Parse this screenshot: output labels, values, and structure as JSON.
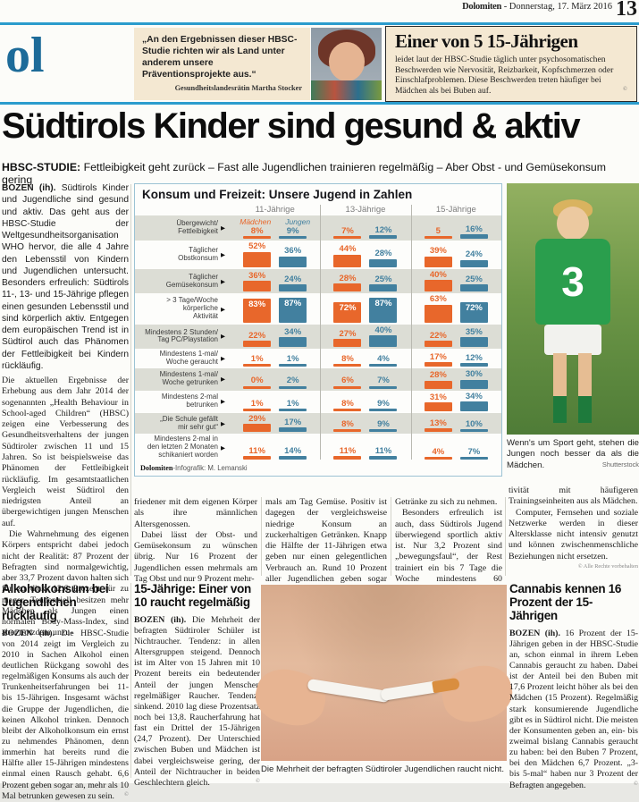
{
  "masthead": {
    "paper": "Dolomiten",
    "dateline": "- Donnerstag, 17. März 2016",
    "page_number": "13",
    "section_fragment": "ol"
  },
  "quote_box": {
    "text": "„An den Ergebnissen dieser HBSC-Studie richten wir als Land unter anderem unsere Präventionsprojekte aus.“",
    "attribution": "Gesundheitslandesrätin Martha Stocker"
  },
  "stat_box": {
    "title": "Einer von 5 15-Jährigen",
    "body": "leidet laut der HBSC-Studie täglich unter psychosomatischen Beschwerden wie Nervosität, Reizbarkeit, Kopfschmerzen oder Einschlafproblemen. Diese Beschwerden treten häufiger bei Mädchen als bei Buben auf.",
    "copyright": "©"
  },
  "headline": "Südtirols Kinder sind gesund & aktiv",
  "subhead": {
    "kicker": "HBSC-STUDIE:",
    "text": "Fettleibigkeit geht zurück – Fast alle Jugendlichen trainieren regelmäßig – Aber Obst - und Gemüsekonsum gering"
  },
  "lead_article": {
    "dateline": "BOZEN (ih).",
    "p1": "Südtirols Kinder und Jugendliche sind gesund und aktiv. Das geht aus der HBSC-Studie der Weltgesundheitsorganisation WHO hervor, die alle 4 Jahre den Lebensstil von Kindern und Jugendlichen untersucht. Besonders erfreulich: Südtirols 11-, 13- und 15-Jährige pflegen einen gesunden Lebensstil und sind körperlich aktiv. Entgegen dem europäischen Trend ist in Südtirol auch das Phänomen der Fettleibigkeit bei Kindern rückläufig.",
    "p2": "Die aktuellen Ergebnisse der Erhebung aus dem Jahr 2014 der sogenannten „Health Behaviour in School-aged Children“ (HBSC) zeigen eine Verbesserung des Gesundheitsverhaltens der jungen Südtiroler zwischen 11 und 15 Jahren. So ist beispielsweise das Phänomen der Fettleibigkeit rückläufig. Im gesamtstaatlichen Vergleich weist Südtirol den niedrigsten Anteil an übergewichtigen jungen Menschen auf.",
    "p3": "Die Wahrnehmung des eigenen Körpers entspricht dabei jedoch nicht der Realität: 87 Prozent der Befragten sind normalgewichtig, aber 33,7 Prozent davon halten sich für zu dick, 12,6 Prozent für zu mager. Tendenziell besitzen mehr Mädchen als Jungen einen normalen Body-Mass-Index, sind aber trotzdem unzu-",
    "col2_p1": "friedener mit dem eigenen Körper als ihre männlichen Altersgenossen.",
    "col2_p2": "Dabei lässt der Obst- und Gemüsekonsum zu wünschen übrig. Nur 16 Prozent der Jugendlichen essen mehrmals am Tag Obst und nur 9 Prozent mehr-",
    "col3_p1": "mals am Tag Gemüse. Positiv ist dagegen der vergleichsweise niedrige Konsum an zuckerhaltigen Getränken. Knapp die Hälfte der 11-Jährigen etwa geben nur einen gelegentlichen Verbrauch an. Rund 10 Prozent aller Jugendlichen geben sogar an, nie solche",
    "col4_p1": "Getränke zu sich zu nehmen.",
    "col4_p2": "Besonders erfreulich ist auch, dass Südtirols Jugend überwiegend sportlich aktiv ist. Nur 3,2 Prozent sind „bewegungsfaul“, der Rest trainiert ein bis 7 Tage die Woche mindestens 60 Minuten. Jungen üben körperliche Ak-",
    "col5_p1": "tivität mit häufigeren Trainingseinheiten aus als Mädchen.",
    "col5_p2": "Computer, Fernsehen und soziale Netzwerke werden in dieser Altersklasse nicht intensiv genutzt und können zwischenmenschliche Beziehungen nicht ersetzen.",
    "rights": "© Alle Rechte vorbehalten"
  },
  "chart_data": {
    "type": "bar",
    "title": "Konsum und Freizeit: Unsere Jugend in Zahlen",
    "credit_brand": "Dolomiten",
    "credit_rest": "-Infografik: M. Lemanski",
    "groups": [
      "11-Jährige",
      "13-Jährige",
      "15-Jährige"
    ],
    "legend": [
      {
        "label": "Mädchen",
        "color": "#e8672b"
      },
      {
        "label": "Jungen",
        "color": "#42809f"
      }
    ],
    "rows": [
      {
        "label": "Übergewicht/\nFettleibigkeit",
        "display": [
          [
            "8%",
            "9%"
          ],
          [
            "7%",
            "12%"
          ],
          [
            "5",
            "16%"
          ]
        ],
        "values": [
          [
            8,
            9
          ],
          [
            7,
            12
          ],
          [
            5,
            16
          ]
        ]
      },
      {
        "label": "Täglicher\nObstkonsum",
        "display": [
          [
            "52%",
            "36%"
          ],
          [
            "44%",
            "28%"
          ],
          [
            "39%",
            "24%"
          ]
        ],
        "values": [
          [
            52,
            36
          ],
          [
            44,
            28
          ],
          [
            39,
            24
          ]
        ]
      },
      {
        "label": "Täglicher\nGemüsekonsum",
        "display": [
          [
            "36%",
            "24%"
          ],
          [
            "28%",
            "25%"
          ],
          [
            "40%",
            "25%"
          ]
        ],
        "values": [
          [
            36,
            24
          ],
          [
            28,
            25
          ],
          [
            40,
            25
          ]
        ]
      },
      {
        "label": "> 3 Tage/Woche\nkörperliche\nAktivität",
        "display": [
          [
            "83%",
            "87%"
          ],
          [
            "72%",
            "87%"
          ],
          [
            "63%",
            "72%"
          ]
        ],
        "values": [
          [
            83,
            87
          ],
          [
            72,
            87
          ],
          [
            63,
            72
          ]
        ]
      },
      {
        "label": "Mindestens 2 Stunden/\nTag PC/Playstation",
        "display": [
          [
            "22%",
            "34%"
          ],
          [
            "27%",
            "40%"
          ],
          [
            "22%",
            "35%"
          ]
        ],
        "values": [
          [
            22,
            34
          ],
          [
            27,
            40
          ],
          [
            22,
            35
          ]
        ]
      },
      {
        "label": "Mindestens 1-mal/\nWoche geraucht",
        "display": [
          [
            "1%",
            "1%"
          ],
          [
            "8%",
            "4%"
          ],
          [
            "17%",
            "12%"
          ]
        ],
        "values": [
          [
            1,
            1
          ],
          [
            8,
            4
          ],
          [
            17,
            12
          ]
        ]
      },
      {
        "label": "Mindestens 1-mal/\nWoche getrunken",
        "display": [
          [
            "0%",
            "2%"
          ],
          [
            "6%",
            "7%"
          ],
          [
            "28%",
            "30%"
          ]
        ],
        "values": [
          [
            0,
            2
          ],
          [
            6,
            7
          ],
          [
            28,
            30
          ]
        ]
      },
      {
        "label": "Mindestens 2-mal\nbetrunken",
        "display": [
          [
            "1%",
            "1%"
          ],
          [
            "8%",
            "9%"
          ],
          [
            "31%",
            "34%"
          ]
        ],
        "values": [
          [
            1,
            1
          ],
          [
            8,
            9
          ],
          [
            31,
            34
          ]
        ]
      },
      {
        "label": "„Die Schule gefällt\nmir sehr gut“",
        "display": [
          [
            "29%",
            "17%"
          ],
          [
            "8%",
            "9%"
          ],
          [
            "13%",
            "10%"
          ]
        ],
        "values": [
          [
            29,
            17
          ],
          [
            8,
            9
          ],
          [
            13,
            10
          ]
        ]
      },
      {
        "label": "Mindestens 2-mal in\nden letzten 2 Monaten\nschikaniert worden",
        "display": [
          [
            "11%",
            "14%"
          ],
          [
            "11%",
            "11%"
          ],
          [
            "4%",
            "7%"
          ]
        ],
        "values": [
          [
            11,
            14
          ],
          [
            11,
            11
          ],
          [
            4,
            7
          ]
        ]
      }
    ]
  },
  "sport_photo": {
    "jersey_number": "3",
    "caption": "Wenn's um Sport geht, stehen die Jungen noch besser da als die Mädchen.",
    "credit": "Shutterstock"
  },
  "smoking_photo": {
    "caption": "Die Mehrheit der befragten Südtiroler Jugendlichen raucht nicht."
  },
  "sections": {
    "alkohol": {
      "title": "Alkoholkonsum bei Jugendlichen rückläufig",
      "dateline": "BOZEN (ih).",
      "body": "Die HBSC-Studie von 2014 zeigt im Vergleich zu 2010 in Sachen Alkohol einen deutlichen Rückgang sowohl des regelmäßigen Konsums als auch der Trunkenheitserfahrungen bei 11- bis 15-Jährigen. Insgesamt wächst die Gruppe der Jugendlichen, die keinen Alkohol trinken. Dennoch bleibt der Alkoholkonsum ein ernst zu nehmendes Phänomen, denn immerhin hat bereits rund die Hälfte aller 15-Jährigen mindestens einmal einen Rausch gehabt. 6,6 Prozent geben sogar an, mehr als 10 Mal betrunken gewesen zu sein.",
      "copyright": "©"
    },
    "raucher": {
      "title": "15-Jährige: Einer von 10 raucht regelmäßig",
      "dateline": "BOZEN (ih).",
      "body": "Die Mehrheit der befragten Südtiroler Schüler ist Nichtraucher. Tendenz: in allen Altersgruppen steigend. Dennoch ist im Alter von 15 Jahren mit 10 Prozent bereits ein bedeutender Anteil der jungen Menschen regelmäßiger Raucher. Tendenz: sinkend. 2010 lag diese Prozentsatz noch bei 13,8. Raucherfahrung hat fast ein Drittel der 15-Jährigen (24,7 Prozent). Der Unterschied zwischen Buben und Mädchen ist dabei vergleichsweise gering, der Anteil der Nichtraucher in beiden Geschlechtern gleich.",
      "copyright": "©"
    },
    "cannabis": {
      "title": "Cannabis kennen 16 Prozent der 15-Jährigen",
      "dateline": "BOZEN (ih).",
      "body": "16 Prozent der 15-Jährigen geben in der HBSC-Studie an, schon einmal in ihrem Leben Cannabis geraucht zu haben. Dabei ist der Anteil bei den Buben mit 17,6 Prozent leicht höher als bei den Mädchen (15 Prozent). Regelmäßig stark konsumierende Jugendliche gibt es in Südtirol nicht. Die meisten der Konsumenten geben an, ein- bis zweimal bislang Cannabis geraucht zu haben: bei den Buben 7 Prozent, bei den Mädchen 6,7 Prozent. „3- bis 5-mal“ haben nur 3 Prozent der Befragten angegeben.",
      "copyright": "©"
    }
  },
  "colors": {
    "accent_blue": "#2b9ccd",
    "madchen_orange": "#e8672b",
    "jungen_blue": "#42809f",
    "box_beige": "#f4e8d2"
  }
}
